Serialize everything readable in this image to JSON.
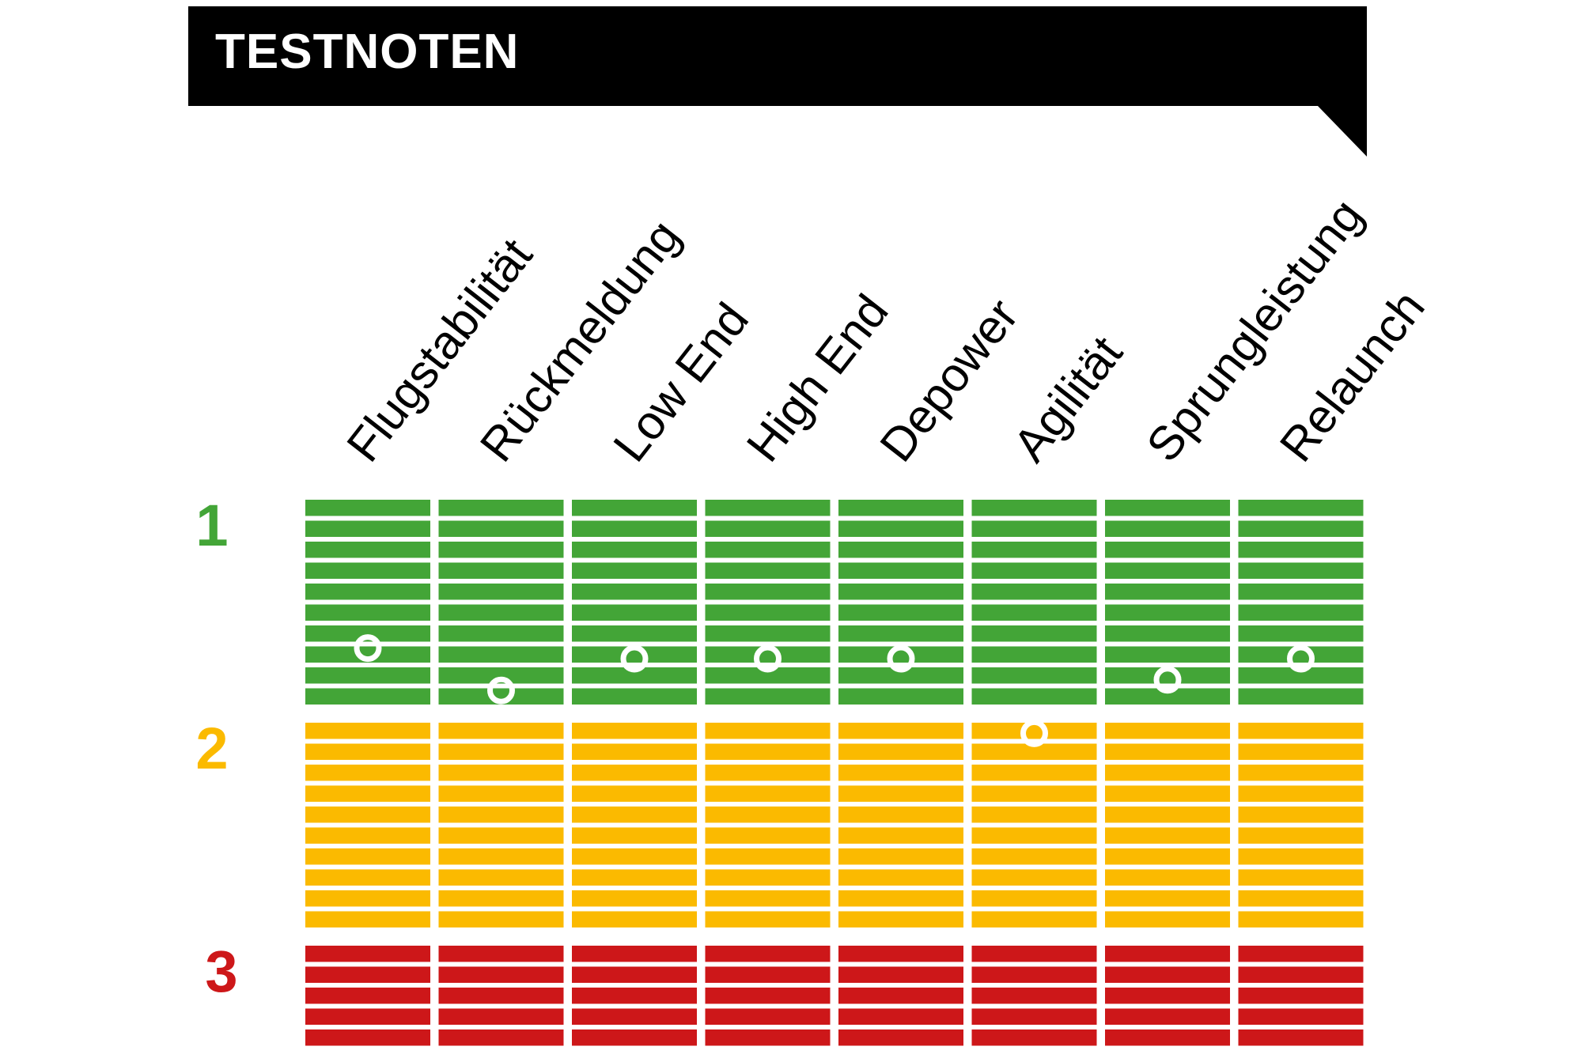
{
  "title": "TESTNOTEN",
  "colors": {
    "banner": "#000000",
    "grade_1": "#43A537",
    "grade_2": "#FBBA00",
    "grade_3": "#CD1719",
    "marker": "#ffffff"
  },
  "chart_data": {
    "type": "scatter",
    "title": "TESTNOTEN",
    "categories": [
      "Flugstabilität",
      "Rückmeldung",
      "Low End",
      "High End",
      "Depower",
      "Agilität",
      "Sprungleistung",
      "Relaunch"
    ],
    "grades": [
      {
        "label": "1",
        "color": "#43A537"
      },
      {
        "label": "2",
        "color": "#FBBA00"
      },
      {
        "label": "3",
        "color": "#CD1719"
      }
    ],
    "values": [
      1.2,
      1.4,
      1.25,
      1.25,
      1.25,
      1.55,
      1.35,
      1.25
    ],
    "ylim": [
      0.5,
      3.5
    ],
    "y_inverted": true
  }
}
